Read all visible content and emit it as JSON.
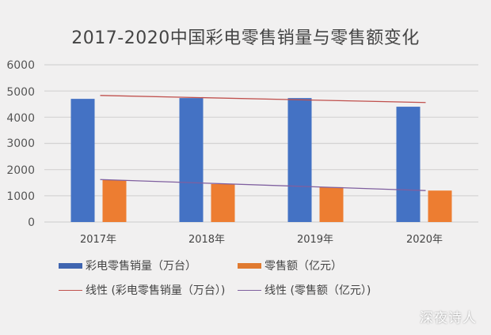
{
  "chart_data": {
    "type": "bar",
    "title": "2017-2020中国彩电零售销量与零售额变化",
    "categories": [
      "2017年",
      "2018年",
      "2019年",
      "2020年"
    ],
    "series": [
      {
        "name": "彩电零售销量（万台）",
        "values": [
          4700,
          4730,
          4730,
          4400
        ],
        "color": "#4472c4"
      },
      {
        "name": "零售额（亿元）",
        "values": [
          1600,
          1450,
          1330,
          1200
        ],
        "color": "#ed7d31"
      }
    ],
    "trendlines": [
      {
        "name": "线性 (彩电零售销量（万台）)",
        "type": "linear",
        "start": 4830,
        "end": 4560,
        "color": "#c0504d"
      },
      {
        "name": "线性 (零售额（亿元）)",
        "type": "linear",
        "start": 1620,
        "end": 1200,
        "color": "#7f5f9f"
      }
    ],
    "yticks": [
      "0",
      "1000",
      "2000",
      "3000",
      "4000",
      "5000",
      "6000"
    ],
    "ylim": [
      0,
      6000
    ],
    "xlabel": "",
    "ylabel": "",
    "grid": true,
    "legend_position": "bottom"
  },
  "legend": {
    "bar1": "彩电零售销量（万台）",
    "bar2": "零售额（亿元）",
    "trend1": "线性 (彩电零售销量（万台）)",
    "trend2": "线性 (零售额（亿元）)"
  },
  "watermark": "深夜诗人"
}
